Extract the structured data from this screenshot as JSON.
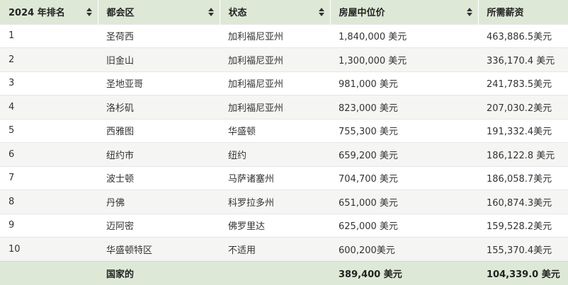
{
  "table": {
    "headers": [
      "2024 年排名",
      "都会区",
      "状态",
      "房屋中位价",
      "所需薪资"
    ],
    "rows": [
      [
        "1",
        "圣荷西",
        "加利福尼亚州",
        "1,840,000 美元",
        "463,886.5美元"
      ],
      [
        "2",
        "旧金山",
        "加利福尼亚州",
        "1,300,000 美元",
        "336,170.4 美元"
      ],
      [
        "3",
        "圣地亚哥",
        "加利福尼亚州",
        "981,000 美元",
        "241,783.5美元"
      ],
      [
        "4",
        "洛杉矶",
        "加利福尼亚州",
        "823,000 美元",
        "207,030.2美元"
      ],
      [
        "5",
        "西雅图",
        "华盛顿",
        "755,300 美元",
        "191,332.4美元"
      ],
      [
        "6",
        "纽约市",
        "纽约",
        "659,200 美元",
        "186,122.8 美元"
      ],
      [
        "7",
        "波士顿",
        "马萨诸塞州",
        "704,700 美元",
        "186,058.7美元"
      ],
      [
        "8",
        "丹佛",
        "科罗拉多州",
        "651,000 美元",
        "160,874.3美元"
      ],
      [
        "9",
        "迈阿密",
        "佛罗里达",
        "625,000 美元",
        "159,528.2美元"
      ],
      [
        "10",
        "华盛顿特区",
        "不适用",
        "600,200美元",
        "155,370.4美元"
      ]
    ],
    "footer": [
      "",
      "国家的",
      "",
      "389,400 美元",
      "104,339.0 美元"
    ]
  },
  "icons": {
    "sort": "sort-updown-icon"
  },
  "colors": {
    "header_bg": "#dde9d6",
    "row_alt_bg": "#f5f5f3"
  }
}
